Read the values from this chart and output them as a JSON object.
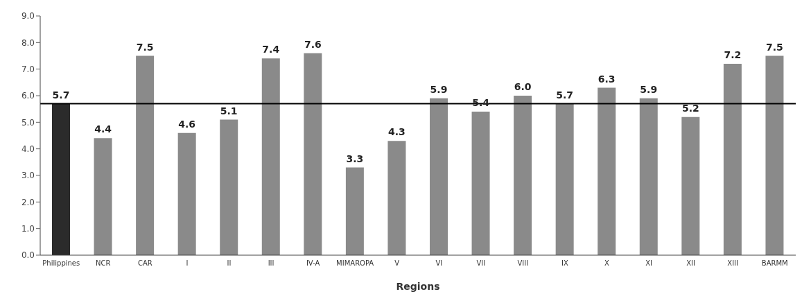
{
  "chart_data": {
    "type": "bar",
    "xlabel": "Regions",
    "categories": [
      "Philippines",
      "NCR",
      "CAR",
      "I",
      "II",
      "III",
      "IV-A",
      "MIMAROPA",
      "V",
      "VI",
      "VII",
      "VIII",
      "IX",
      "X",
      "XI",
      "XII",
      "XIII",
      "BARMM"
    ],
    "values": [
      5.7,
      4.4,
      7.5,
      4.6,
      5.1,
      7.4,
      7.6,
      3.3,
      4.3,
      5.9,
      5.4,
      6.0,
      5.7,
      6.3,
      5.9,
      5.2,
      7.2,
      7.5
    ],
    "value_labels": [
      "5.7",
      "4.4",
      "7.5",
      "4.6",
      "5.1",
      "7.4",
      "7.6",
      "3.3",
      "4.3",
      "5.9",
      "5.4",
      "6.0",
      "5.7",
      "6.3",
      "5.9",
      "5.2",
      "7.2",
      "7.5"
    ],
    "colors": [
      "#2b2b2b",
      "#8a8a8a",
      "#8a8a8a",
      "#8a8a8a",
      "#8a8a8a",
      "#8a8a8a",
      "#8a8a8a",
      "#8a8a8a",
      "#8a8a8a",
      "#8a8a8a",
      "#8a8a8a",
      "#8a8a8a",
      "#8a8a8a",
      "#8a8a8a",
      "#8a8a8a",
      "#8a8a8a",
      "#8a8a8a",
      "#8a8a8a"
    ],
    "ylim": [
      0,
      9
    ],
    "yticks": [
      {
        "value": 0,
        "label": "0.0"
      },
      {
        "value": 1,
        "label": "1.0"
      },
      {
        "value": 2,
        "label": "2.0"
      },
      {
        "value": 3,
        "label": "3.0"
      },
      {
        "value": 4,
        "label": "4.0"
      },
      {
        "value": 5,
        "label": "5.0"
      },
      {
        "value": 6,
        "label": "6.0"
      },
      {
        "value": 7,
        "label": "7.0"
      },
      {
        "value": 8,
        "label": "8.0"
      },
      {
        "value": 9,
        "label": "9.0"
      }
    ],
    "ref_lines": [
      {
        "axis": "y",
        "value": 5.7,
        "color": "#000000"
      }
    ],
    "grid": false
  }
}
